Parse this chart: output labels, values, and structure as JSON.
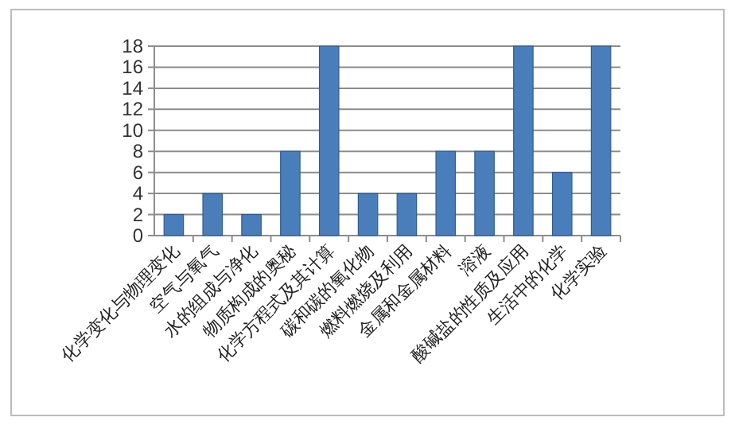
{
  "chart_data": {
    "type": "bar",
    "categories": [
      "化学变化与物理变化",
      "空气与氧气",
      "水的组成与净化",
      "物质构成的奥秘",
      "化学方程式及其计算",
      "碳和碳的氧化物",
      "燃料燃烧及利用",
      "金属和金属材料",
      "溶液",
      "酸碱盐的性质及应用",
      "生活中的化学",
      "化学实验"
    ],
    "values": [
      2,
      4,
      2,
      8,
      18,
      4,
      4,
      8,
      8,
      18,
      6,
      18
    ],
    "color": "#4a7ebb",
    "ylim": [
      0,
      18
    ],
    "yticks": [
      0,
      2,
      4,
      6,
      8,
      10,
      12,
      14,
      16,
      18
    ],
    "grid": "y"
  }
}
